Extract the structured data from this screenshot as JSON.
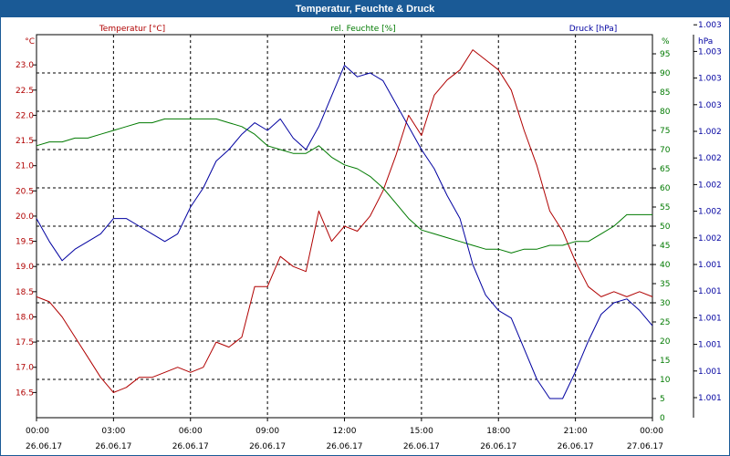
{
  "title": "Temperatur, Feuchte & Druck",
  "colors": {
    "temperature": "#b00000",
    "humidity": "#007a00",
    "pressure": "#0000a0",
    "titlebar": "#1a5a96",
    "grid": "#000000"
  },
  "chart_data": {
    "type": "line",
    "title": "Temperatur, Feuchte & Druck",
    "grid": true,
    "x_ticks": [
      {
        "time": "00:00",
        "date": "26.06.17"
      },
      {
        "time": "03:00",
        "date": "26.06.17"
      },
      {
        "time": "06:00",
        "date": "26.06.17"
      },
      {
        "time": "09:00",
        "date": "26.06.17"
      },
      {
        "time": "12:00",
        "date": "26.06.17"
      },
      {
        "time": "15:00",
        "date": "26.06.17"
      },
      {
        "time": "18:00",
        "date": "26.06.17"
      },
      {
        "time": "21:00",
        "date": "26.06.17"
      },
      {
        "time": "00:00",
        "date": "27.06.17"
      }
    ],
    "axes": {
      "temperature": {
        "label": "Temperatur [°C]",
        "unit": "°C",
        "ylim": [
          16.0,
          23.6
        ],
        "ticks": [
          "16.5",
          "17.0",
          "17.5",
          "18.0",
          "18.5",
          "19.0",
          "19.5",
          "20.0",
          "20.5",
          "21.0",
          "21.5",
          "22.0",
          "22.5",
          "23.0"
        ]
      },
      "humidity": {
        "label": "rel. Feuchte [%]",
        "unit": "%",
        "ylim": [
          0,
          100
        ],
        "ticks": [
          "0",
          "5",
          "10",
          "15",
          "20",
          "25",
          "30",
          "35",
          "40",
          "45",
          "50",
          "55",
          "60",
          "65",
          "70",
          "75",
          "80",
          "85",
          "90",
          "95"
        ]
      },
      "pressure": {
        "unit": "hPa",
        "ylim": [
          0,
          100
        ],
        "ticks": [
          "1.001",
          "1.001",
          "1.001",
          "1.001",
          "1.001",
          "1.001",
          "1.002",
          "1.002",
          "1.002",
          "1.002",
          "1.002",
          "1.003",
          "1.003",
          "1.003",
          "1.003"
        ]
      }
    },
    "series": [
      {
        "name": "Temperatur [°C]",
        "axis": "temperature",
        "x": [
          0,
          0.5,
          1,
          1.5,
          2,
          2.5,
          3,
          3.5,
          4,
          4.5,
          5,
          5.5,
          6,
          6.5,
          7,
          7.5,
          8,
          8.5,
          9,
          9.5,
          10,
          10.5,
          11,
          11.5,
          12,
          12.5,
          13,
          13.5,
          14,
          14.5,
          15,
          15.5,
          16,
          16.5,
          17,
          17.5,
          18,
          18.5,
          19,
          19.5,
          20,
          20.5,
          21,
          21.5,
          22,
          22.5,
          23,
          23.5,
          24
        ],
        "values": [
          18.4,
          18.3,
          18.0,
          17.6,
          17.2,
          16.8,
          16.5,
          16.6,
          16.8,
          16.8,
          16.9,
          17.0,
          16.9,
          17.0,
          17.5,
          17.4,
          17.6,
          18.6,
          18.6,
          19.2,
          19.0,
          18.9,
          20.1,
          19.5,
          19.8,
          19.7,
          20.0,
          20.5,
          21.2,
          22.0,
          21.6,
          22.4,
          22.7,
          22.9,
          23.3,
          23.1,
          22.9,
          22.5,
          21.7,
          21.0,
          20.1,
          19.7,
          19.1,
          18.6,
          18.4,
          18.5,
          18.4,
          18.5,
          18.4
        ]
      },
      {
        "name": "rel. Feuchte [%]",
        "axis": "humidity",
        "x": [
          0,
          0.5,
          1,
          1.5,
          2,
          2.5,
          3,
          3.5,
          4,
          4.5,
          5,
          5.5,
          6,
          6.5,
          7,
          7.5,
          8,
          8.5,
          9,
          9.5,
          10,
          10.5,
          11,
          11.5,
          12,
          12.5,
          13,
          13.5,
          14,
          14.5,
          15,
          15.5,
          16,
          16.5,
          17,
          17.5,
          18,
          18.5,
          19,
          19.5,
          20,
          20.5,
          21,
          21.5,
          22,
          22.5,
          23,
          23.5,
          24
        ],
        "values": [
          71,
          72,
          72,
          73,
          73,
          74,
          75,
          76,
          77,
          77,
          78,
          78,
          78,
          78,
          78,
          77,
          76,
          74,
          71,
          70,
          69,
          69,
          71,
          68,
          66,
          65,
          63,
          60,
          56,
          52,
          49,
          48,
          47,
          46,
          45,
          44,
          44,
          43,
          44,
          44,
          45,
          45,
          46,
          46,
          48,
          50,
          53,
          53,
          53
        ]
      },
      {
        "name": "Druck [hPa]",
        "axis": "pressure",
        "x": [
          0,
          0.5,
          1,
          1.5,
          2,
          2.5,
          3,
          3.5,
          4,
          4.5,
          5,
          5.5,
          6,
          6.5,
          7,
          7.5,
          8,
          8.5,
          9,
          9.5,
          10,
          10.5,
          11,
          11.5,
          12,
          12.5,
          13,
          13.5,
          14,
          14.5,
          15,
          15.5,
          16,
          16.5,
          17,
          17.5,
          18,
          18.5,
          19,
          19.5,
          20,
          20.5,
          21,
          21.5,
          22,
          22.5,
          23,
          23.5,
          24
        ],
        "values": [
          52,
          46,
          41,
          44,
          46,
          48,
          52,
          52,
          50,
          48,
          46,
          48,
          55,
          60,
          67,
          70,
          74,
          77,
          75,
          78,
          73,
          70,
          76,
          84,
          92,
          89,
          90,
          88,
          82,
          76,
          70,
          65,
          58,
          52,
          40,
          32,
          28,
          26,
          18,
          10,
          5,
          5,
          12,
          20,
          27,
          30,
          31,
          28,
          24
        ]
      }
    ]
  }
}
